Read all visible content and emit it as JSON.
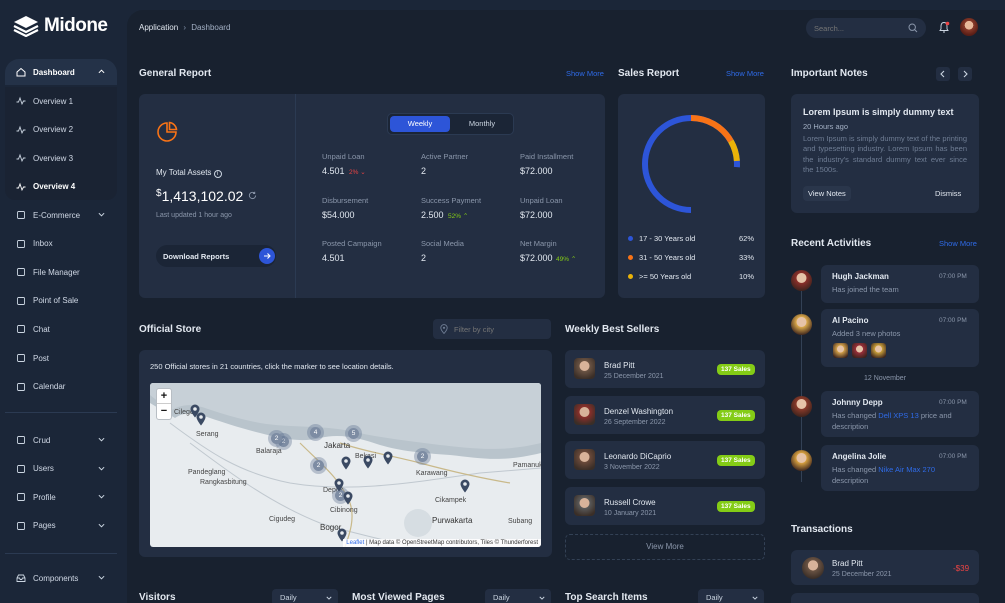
{
  "brand": {
    "name": "Midone"
  },
  "breadcrumb": {
    "parent": "Application",
    "current": "Dashboard"
  },
  "header": {
    "search_placeholder": "Search..."
  },
  "sidebar": {
    "dashboard": "Dashboard",
    "sub": [
      "Overview 1",
      "Overview 2",
      "Overview 3",
      "Overview 4"
    ],
    "items": [
      "E-Commerce",
      "Inbox",
      "File Manager",
      "Point of Sale",
      "Chat",
      "Post",
      "Calendar"
    ],
    "items2": [
      "Crud",
      "Users",
      "Profile",
      "Pages"
    ],
    "components": "Components"
  },
  "general_report": {
    "title": "General Report",
    "show_more": "Show More",
    "tabs": [
      "Weekly",
      "Monthly"
    ],
    "total_label": "My Total Assets",
    "currency": "$",
    "total_value": "1,413,102.02",
    "updated": "Last updated 1 hour ago",
    "download": "Download Reports",
    "stats": [
      {
        "label": "Unpaid Loan",
        "value": "4.501",
        "delta": "2%",
        "trend": "down"
      },
      {
        "label": "Active Partner",
        "value": "2",
        "delta": "",
        "trend": ""
      },
      {
        "label": "Paid Installment",
        "value": "$72.000",
        "delta": "",
        "trend": ""
      },
      {
        "label": "Disbursement",
        "value": "$54.000",
        "delta": "",
        "trend": ""
      },
      {
        "label": "Success Payment",
        "value": "2.500",
        "delta": "52%",
        "trend": "up"
      },
      {
        "label": "Unpaid Loan",
        "value": "$72.000",
        "delta": "",
        "trend": ""
      },
      {
        "label": "Posted Campaign",
        "value": "4.501",
        "delta": "",
        "trend": ""
      },
      {
        "label": "Social Media",
        "value": "2",
        "delta": "",
        "trend": ""
      },
      {
        "label": "Net Margin",
        "value": "$72.000",
        "delta": "49%",
        "trend": "up"
      }
    ]
  },
  "sales_report": {
    "title": "Sales Report",
    "show_more": "Show More",
    "legend": [
      {
        "label": "17 - 30 Years old",
        "pct": "62%",
        "color": "#2d55d8"
      },
      {
        "label": "31 - 50 Years old",
        "pct": "33%",
        "color": "#f97316"
      },
      {
        "label": ">= 50 Years old",
        "pct": "10%",
        "color": "#eab308"
      }
    ]
  },
  "notes": {
    "title": "Important Notes",
    "heading": "Lorem Ipsum is simply dummy text",
    "time": "20 Hours ago",
    "body": "Lorem Ipsum is simply dummy text of the printing and typesetting industry. Lorem Ipsum has been the industry's standard dummy text ever since the 1500s.",
    "view": "View Notes",
    "dismiss": "Dismiss"
  },
  "activities": {
    "title": "Recent Activities",
    "show_more": "Show More",
    "separator": "12 November",
    "items": [
      {
        "name": "Hugh Jackman",
        "time": "07:00 PM",
        "pre": "Has joined the team",
        "link": "",
        "post": ""
      },
      {
        "name": "Al Pacino",
        "time": "07:00 PM",
        "pre": "Added 3 new photos",
        "link": "",
        "post": ""
      },
      {
        "name": "Johnny Depp",
        "time": "07:00 PM",
        "pre": "Has changed ",
        "link": "Dell XPS 13",
        "post": " price and description"
      },
      {
        "name": "Angelina Jolie",
        "time": "07:00 PM",
        "pre": "Has changed ",
        "link": "Nike Air Max 270",
        "post": " description"
      }
    ]
  },
  "transactions": {
    "title": "Transactions",
    "items": [
      {
        "name": "Brad Pitt",
        "date": "25 December 2021",
        "amount": "-$39"
      }
    ]
  },
  "store": {
    "title": "Official Store",
    "filter_placeholder": "Filter by city",
    "desc": "250 Official stores in 21 countries, click the marker to see location details.",
    "zoom_in": "+",
    "zoom_out": "−",
    "attribution_link": "Leaflet",
    "attribution": " | Map data © OpenStreetMap contributors, Tiles © Thunderforest",
    "places": [
      "Cilegon",
      "Serang",
      "Balaraja",
      "Jakarta",
      "Bekasi",
      "Karawang",
      "Pamanuk",
      "Pandeglang",
      "Rangkasbitung",
      "Depok",
      "Cibinong",
      "Cigudeg",
      "Bogor",
      "Cikampek",
      "Purwakarta",
      "Subang"
    ],
    "clusters": [
      "2",
      "4",
      "5",
      "2",
      "2",
      "2",
      "2"
    ]
  },
  "sellers": {
    "title": "Weekly Best Sellers",
    "view_more": "View More",
    "items": [
      {
        "name": "Brad Pitt",
        "date": "25 December 2021",
        "badge": "137 Sales"
      },
      {
        "name": "Denzel Washington",
        "date": "26 September 2022",
        "badge": "137 Sales"
      },
      {
        "name": "Leonardo DiCaprio",
        "date": "3 November 2022",
        "badge": "137 Sales"
      },
      {
        "name": "Russell Crowe",
        "date": "10 January 2021",
        "badge": "137 Sales"
      }
    ]
  },
  "bottom": {
    "visitors": "Visitors",
    "most_viewed": "Most Viewed Pages",
    "top_search": "Top Search Items",
    "daily": "Daily"
  }
}
